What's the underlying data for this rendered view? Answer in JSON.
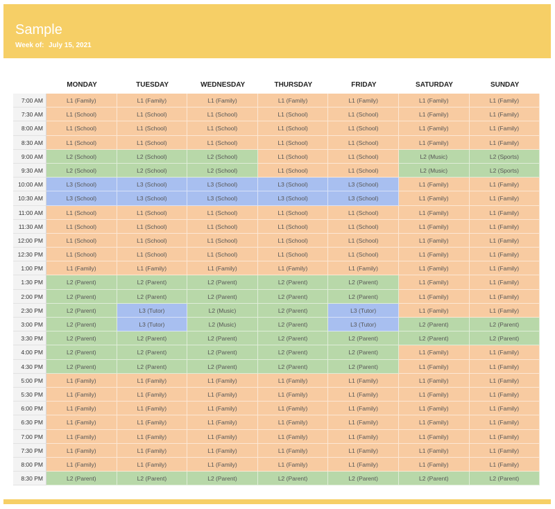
{
  "header": {
    "title": "Sample",
    "week_label": "Week of:",
    "week_value": "July 15, 2021"
  },
  "days": [
    "MONDAY",
    "TUESDAY",
    "WEDNESDAY",
    "THURSDAY",
    "FRIDAY",
    "SATURDAY",
    "SUNDAY"
  ],
  "colors": {
    "L1": "#f8cba1",
    "L2": "#b8d8a9",
    "L3": "#a8bff0",
    "header": "#f6cf66"
  },
  "rows": [
    {
      "time": "7:00 AM",
      "cells": [
        "L1 (Family)",
        "L1 (Family)",
        "L1 (Family)",
        "L1 (Family)",
        "L1 (Family)",
        "L1 (Family)",
        "L1 (Family)"
      ]
    },
    {
      "time": "7:30 AM",
      "cells": [
        "L1 (School)",
        "L1 (School)",
        "L1 (School)",
        "L1 (School)",
        "L1 (School)",
        "L1 (Family)",
        "L1 (Family)"
      ]
    },
    {
      "time": "8:00 AM",
      "cells": [
        "L1 (School)",
        "L1 (School)",
        "L1 (School)",
        "L1 (School)",
        "L1 (School)",
        "L1 (Family)",
        "L1 (Family)"
      ]
    },
    {
      "time": "8:30 AM",
      "cells": [
        "L1 (School)",
        "L1 (School)",
        "L1 (School)",
        "L1 (School)",
        "L1 (School)",
        "L1 (Family)",
        "L1 (Family)"
      ]
    },
    {
      "time": "9:00 AM",
      "cells": [
        "L2 (School)",
        "L2 (School)",
        "L2 (School)",
        "L1 (School)",
        "L1 (School)",
        "L2 (Music)",
        "L2 (Sports)"
      ]
    },
    {
      "time": "9:30 AM",
      "cells": [
        "L2 (School)",
        "L2 (School)",
        "L2 (School)",
        "L1 (School)",
        "L1 (School)",
        "L2 (Music)",
        "L2 (Sports)"
      ]
    },
    {
      "time": "10:00 AM",
      "cells": [
        "L3 (School)",
        "L3 (School)",
        "L3 (School)",
        "L3 (School)",
        "L3 (School)",
        "L1 (Family)",
        "L1 (Family)"
      ]
    },
    {
      "time": "10:30 AM",
      "cells": [
        "L3 (School)",
        "L3 (School)",
        "L3 (School)",
        "L3 (School)",
        "L3 (School)",
        "L1 (Family)",
        "L1 (Family)"
      ]
    },
    {
      "time": "11:00 AM",
      "cells": [
        "L1 (School)",
        "L1 (School)",
        "L1 (School)",
        "L1 (School)",
        "L1 (School)",
        "L1 (Family)",
        "L1 (Family)"
      ]
    },
    {
      "time": "11:30 AM",
      "cells": [
        "L1 (School)",
        "L1 (School)",
        "L1 (School)",
        "L1 (School)",
        "L1 (School)",
        "L1 (Family)",
        "L1 (Family)"
      ]
    },
    {
      "time": "12:00 PM",
      "cells": [
        "L1 (School)",
        "L1 (School)",
        "L1 (School)",
        "L1 (School)",
        "L1 (School)",
        "L1 (Family)",
        "L1 (Family)"
      ]
    },
    {
      "time": "12:30 PM",
      "cells": [
        "L1 (School)",
        "L1 (School)",
        "L1 (School)",
        "L1 (School)",
        "L1 (School)",
        "L1 (Family)",
        "L1 (Family)"
      ]
    },
    {
      "time": "1:00 PM",
      "cells": [
        "L1 (Family)",
        "L1 (Family)",
        "L1 (Family)",
        "L1 (Family)",
        "L1 (Family)",
        "L1 (Family)",
        "L1 (Family)"
      ]
    },
    {
      "time": "1:30 PM",
      "cells": [
        "L2 (Parent)",
        "L2 (Parent)",
        "L2 (Parent)",
        "L2 (Parent)",
        "L2 (Parent)",
        "L1 (Family)",
        "L1 (Family)"
      ]
    },
    {
      "time": "2:00 PM",
      "cells": [
        "L2 (Parent)",
        "L2 (Parent)",
        "L2 (Parent)",
        "L2 (Parent)",
        "L2 (Parent)",
        "L1 (Family)",
        "L1 (Family)"
      ]
    },
    {
      "time": "2:30 PM",
      "cells": [
        "L2 (Parent)",
        "L3 (Tutor)",
        "L2 (Music)",
        "L2 (Parent)",
        "L3 (Tutor)",
        "L1 (Family)",
        "L1 (Family)"
      ]
    },
    {
      "time": "3:00 PM",
      "cells": [
        "L2 (Parent)",
        "L3 (Tutor)",
        "L2 (Music)",
        "L2 (Parent)",
        "L3 (Tutor)",
        "L2 (Parent)",
        "L2 (Parent)"
      ]
    },
    {
      "time": "3:30 PM",
      "cells": [
        "L2 (Parent)",
        "L2 (Parent)",
        "L2 (Parent)",
        "L2 (Parent)",
        "L2 (Parent)",
        "L2 (Parent)",
        "L2 (Parent)"
      ]
    },
    {
      "time": "4:00 PM",
      "cells": [
        "L2 (Parent)",
        "L2 (Parent)",
        "L2 (Parent)",
        "L2 (Parent)",
        "L2 (Parent)",
        "L1 (Family)",
        "L1 (Family)"
      ]
    },
    {
      "time": "4:30 PM",
      "cells": [
        "L2 (Parent)",
        "L2 (Parent)",
        "L2 (Parent)",
        "L2 (Parent)",
        "L2 (Parent)",
        "L1 (Family)",
        "L1 (Family)"
      ]
    },
    {
      "time": "5:00 PM",
      "cells": [
        "L1 (Family)",
        "L1 (Family)",
        "L1 (Family)",
        "L1 (Family)",
        "L1 (Family)",
        "L1 (Family)",
        "L1 (Family)"
      ]
    },
    {
      "time": "5:30 PM",
      "cells": [
        "L1 (Family)",
        "L1 (Family)",
        "L1 (Family)",
        "L1 (Family)",
        "L1 (Family)",
        "L1 (Family)",
        "L1 (Family)"
      ]
    },
    {
      "time": "6:00 PM",
      "cells": [
        "L1 (Family)",
        "L1 (Family)",
        "L1 (Family)",
        "L1 (Family)",
        "L1 (Family)",
        "L1 (Family)",
        "L1 (Family)"
      ]
    },
    {
      "time": "6:30 PM",
      "cells": [
        "L1 (Family)",
        "L1 (Family)",
        "L1 (Family)",
        "L1 (Family)",
        "L1 (Family)",
        "L1 (Family)",
        "L1 (Family)"
      ]
    },
    {
      "time": "7:00 PM",
      "cells": [
        "L1 (Family)",
        "L1 (Family)",
        "L1 (Family)",
        "L1 (Family)",
        "L1 (Family)",
        "L1 (Family)",
        "L1 (Family)"
      ]
    },
    {
      "time": "7:30 PM",
      "cells": [
        "L1 (Family)",
        "L1 (Family)",
        "L1 (Family)",
        "L1 (Family)",
        "L1 (Family)",
        "L1 (Family)",
        "L1 (Family)"
      ]
    },
    {
      "time": "8:00 PM",
      "cells": [
        "L1 (Family)",
        "L1 (Family)",
        "L1 (Family)",
        "L1 (Family)",
        "L1 (Family)",
        "L1 (Family)",
        "L1 (Family)"
      ]
    },
    {
      "time": "8:30 PM",
      "cells": [
        "L2 (Parent)",
        "L2 (Parent)",
        "L2 (Parent)",
        "L2 (Parent)",
        "L2 (Parent)",
        "L2 (Parent)",
        "L2 (Parent)"
      ]
    }
  ]
}
